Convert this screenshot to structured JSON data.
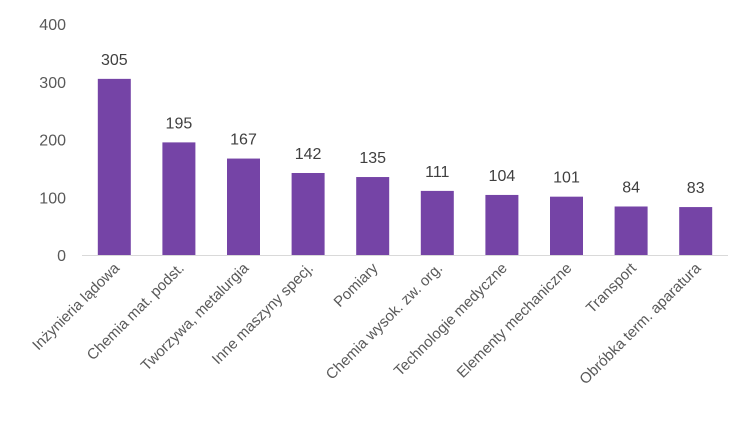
{
  "chart_data": {
    "type": "bar",
    "categories": [
      "Inżynieria lądowa",
      "Chemia mat. podst.",
      "Tworzywa, metalurgia",
      "Inne maszyny specj.",
      "Pomiary",
      "Chemia wysok. zw. org.",
      "Technologie medyczne",
      "Elementy mechaniczne",
      "Transport",
      "Obróbka term. aparatura"
    ],
    "values": [
      305,
      195,
      167,
      142,
      135,
      111,
      104,
      101,
      84,
      83
    ],
    "ylim": [
      0,
      400
    ],
    "yticks": [
      "0",
      "100",
      "200",
      "300",
      "400"
    ],
    "grid": false,
    "legend": "none",
    "bar_color": "#7544A6",
    "axis_color": "#D9D9D9",
    "title": "",
    "xlabel": "",
    "ylabel": ""
  }
}
